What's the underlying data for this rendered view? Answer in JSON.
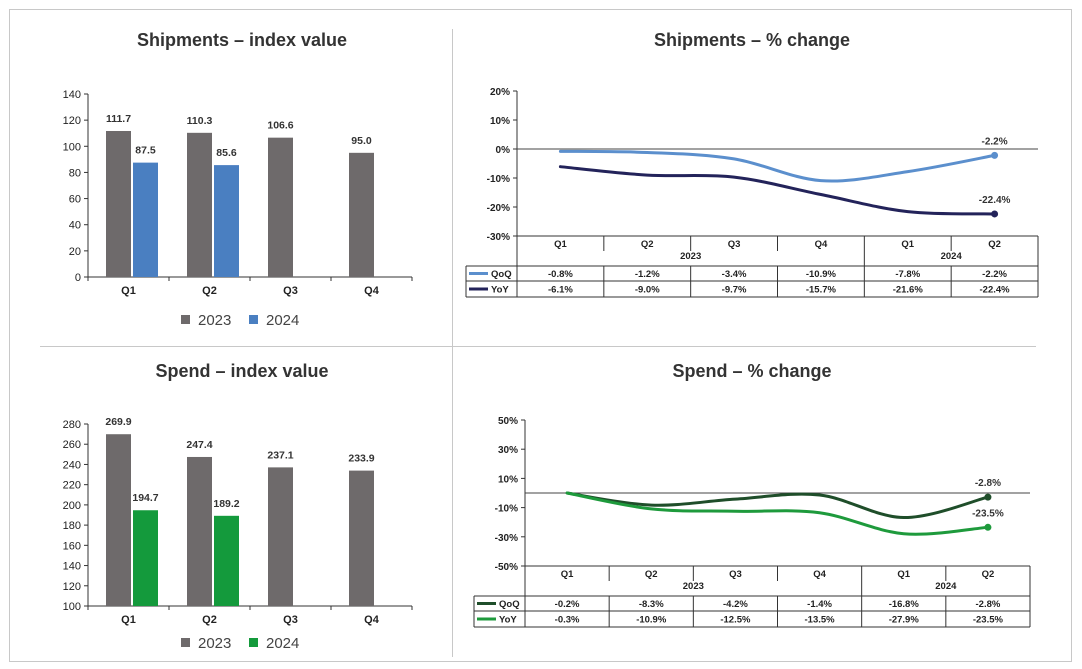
{
  "titles": {
    "shipments_index": "Shipments – index value",
    "shipments_change": "Shipments – % change",
    "spend_index": "Spend – index value",
    "spend_change": "Spend – % change"
  },
  "colors": {
    "bar_2023": "#6e6a6b",
    "bar_2024_shipments": "#4a7fc1",
    "bar_2024_spend": "#149a3c",
    "shipments_qoq": "#5b8fcd",
    "shipments_yoy": "#23235a",
    "spend_qoq": "#1f4e2a",
    "spend_yoy": "#1e9a3c",
    "axis": "#333333"
  },
  "chart_data": [
    {
      "id": "shipments_index",
      "type": "bar",
      "title": "Shipments – index value",
      "categories": [
        "Q1",
        "Q2",
        "Q3",
        "Q4"
      ],
      "series": [
        {
          "name": "2023",
          "values": [
            111.7,
            110.3,
            106.6,
            95.0
          ],
          "labels": [
            "111.7",
            "110.3",
            "106.6",
            "95.0"
          ]
        },
        {
          "name": "2024",
          "values": [
            87.5,
            85.6,
            null,
            null
          ],
          "labels": [
            "87.5",
            "85.6",
            "",
            ""
          ]
        }
      ],
      "ylim": [
        0,
        140
      ],
      "yticks": [
        0,
        20,
        40,
        60,
        80,
        100,
        120,
        140
      ],
      "ytick_labels": [
        "0",
        "20",
        "40",
        "60",
        "80",
        "100",
        "120",
        "140"
      ],
      "legend": [
        "2023",
        "2024"
      ],
      "legend_position": "bottom"
    },
    {
      "id": "spend_index",
      "type": "bar",
      "title": "Spend – index value",
      "categories": [
        "Q1",
        "Q2",
        "Q3",
        "Q4"
      ],
      "series": [
        {
          "name": "2023",
          "values": [
            269.9,
            247.4,
            237.1,
            233.9
          ],
          "labels": [
            "269.9",
            "247.4",
            "237.1",
            "233.9"
          ]
        },
        {
          "name": "2024",
          "values": [
            194.7,
            189.2,
            null,
            null
          ],
          "labels": [
            "194.7",
            "189.2",
            "",
            ""
          ]
        }
      ],
      "ylim": [
        100,
        280
      ],
      "yticks": [
        100,
        120,
        140,
        160,
        180,
        200,
        220,
        240,
        260,
        280
      ],
      "ytick_labels": [
        "100",
        "120",
        "140",
        "160",
        "180",
        "200",
        "220",
        "240",
        "260",
        "280"
      ],
      "legend": [
        "2023",
        "2024"
      ],
      "legend_position": "bottom"
    },
    {
      "id": "shipments_change",
      "type": "line",
      "title": "Shipments – % change",
      "categories": [
        "Q1",
        "Q2",
        "Q3",
        "Q4",
        "Q1",
        "Q2"
      ],
      "year_groups": [
        {
          "label": "2023",
          "count": 4
        },
        {
          "label": "2024",
          "count": 2
        }
      ],
      "series": [
        {
          "name": "QoQ",
          "values": [
            -0.8,
            -1.2,
            -3.4,
            -10.9,
            -7.8,
            -2.2
          ],
          "labels": [
            "-0.8%",
            "-1.2%",
            "-3.4%",
            "-10.9%",
            "-7.8%",
            "-2.2%"
          ],
          "end_label": "-2.2%"
        },
        {
          "name": "YoY",
          "values": [
            -6.1,
            -9.0,
            -9.7,
            -15.7,
            -21.6,
            -22.4
          ],
          "labels": [
            "-6.1%",
            "-9.0%",
            "-9.7%",
            "-15.7%",
            "-21.6%",
            "-22.4%"
          ],
          "end_label": "-22.4%"
        }
      ],
      "ylim": [
        -30,
        20
      ],
      "yticks": [
        -30,
        -20,
        -10,
        0,
        10,
        20
      ],
      "ytick_labels": [
        "-30%",
        "-20%",
        "-10%",
        "0%",
        "10%",
        "20%"
      ],
      "ylabel": ""
    },
    {
      "id": "spend_change",
      "type": "line",
      "title": "Spend – % change",
      "categories": [
        "Q1",
        "Q2",
        "Q3",
        "Q4",
        "Q1",
        "Q2"
      ],
      "year_groups": [
        {
          "label": "2023",
          "count": 4
        },
        {
          "label": "2024",
          "count": 2
        }
      ],
      "series": [
        {
          "name": "QoQ",
          "values": [
            -0.2,
            -8.3,
            -4.2,
            -1.4,
            -16.8,
            -2.8
          ],
          "labels": [
            "-0.2%",
            "-8.3%",
            "-4.2%",
            "-1.4%",
            "-16.8%",
            "-2.8%"
          ],
          "end_label": "-2.8%"
        },
        {
          "name": "YoY",
          "values": [
            -0.3,
            -10.9,
            -12.5,
            -13.5,
            -27.9,
            -23.5
          ],
          "labels": [
            "-0.3%",
            "-10.9%",
            "-12.5%",
            "-13.5%",
            "-27.9%",
            "-23.5%"
          ],
          "end_label": "-23.5%"
        }
      ],
      "ylim": [
        -50,
        50
      ],
      "yticks": [
        -50,
        -30,
        -10,
        10,
        30,
        50
      ],
      "ytick_labels": [
        "-50%",
        "-30%",
        "-10%",
        "10%",
        "30%",
        "50%"
      ],
      "ylabel": ""
    }
  ]
}
